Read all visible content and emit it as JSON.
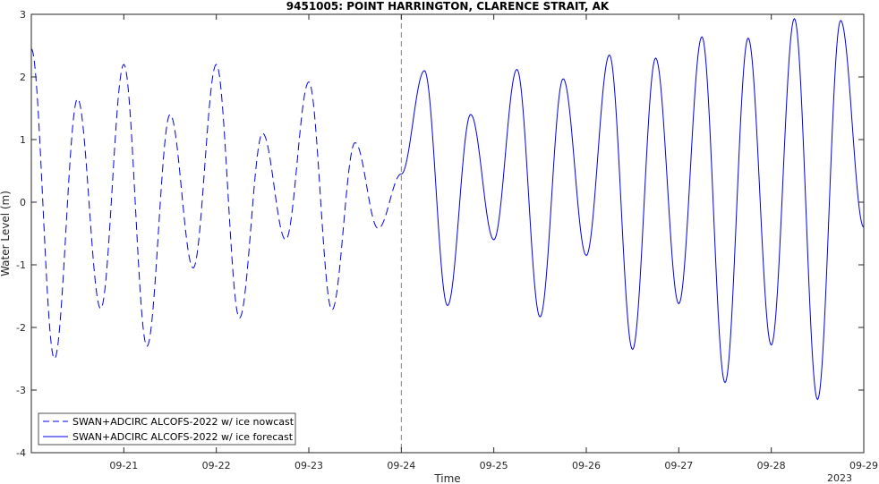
{
  "chart_data": {
    "type": "line",
    "title": "9451005: POINT HARRINGTON, CLARENCE STRAIT, AK",
    "xlabel": "Time",
    "ylabel": "Water Level (m)",
    "year_label": "2023",
    "xlim": [
      "2023-09-20 00:00",
      "2023-09-29 00:00"
    ],
    "ylim": [
      -4,
      3
    ],
    "x_ticks": [
      "09-21",
      "09-22",
      "09-23",
      "09-24",
      "09-25",
      "09-26",
      "09-27",
      "09-28",
      "09-29"
    ],
    "y_ticks": [
      "-4",
      "-3",
      "-2",
      "-1",
      "0",
      "1",
      "2",
      "3"
    ],
    "divider_x": "2023-09-24 00:00",
    "grid": false,
    "legend_position": "bottom-left",
    "colors": {
      "series": "#0000ee",
      "divider": "#808080",
      "axis": "#262626"
    },
    "series": [
      {
        "name": "SWAN+ADCIRC ALCOFS-2022 w/ ice nowcast",
        "style": "dashed",
        "x": [
          "2023-09-20 00:00",
          "2023-09-20 06:00",
          "2023-09-20 12:00",
          "2023-09-20 18:00",
          "2023-09-21 00:00",
          "2023-09-21 06:00",
          "2023-09-21 12:00",
          "2023-09-21 18:00",
          "2023-09-22 00:00",
          "2023-09-22 06:00",
          "2023-09-22 12:00",
          "2023-09-22 18:00",
          "2023-09-23 00:00",
          "2023-09-23 06:00",
          "2023-09-23 12:00",
          "2023-09-23 18:00",
          "2023-09-24 00:00"
        ],
        "y": [
          2.45,
          -2.5,
          1.65,
          -1.7,
          2.2,
          -2.3,
          1.4,
          -1.05,
          2.2,
          -1.85,
          1.1,
          -0.6,
          1.92,
          -1.72,
          0.95,
          -0.42,
          0.45
        ]
      },
      {
        "name": "SWAN+ADCIRC ALCOFS-2022 w/ ice forecast",
        "style": "solid",
        "x": [
          "2023-09-24 00:00",
          "2023-09-24 06:00",
          "2023-09-24 12:00",
          "2023-09-24 18:00",
          "2023-09-25 00:00",
          "2023-09-25 06:00",
          "2023-09-25 12:00",
          "2023-09-25 18:00",
          "2023-09-26 00:00",
          "2023-09-26 06:00",
          "2023-09-26 12:00",
          "2023-09-26 18:00",
          "2023-09-27 00:00",
          "2023-09-27 06:00",
          "2023-09-27 12:00",
          "2023-09-27 18:00",
          "2023-09-28 00:00",
          "2023-09-28 06:00",
          "2023-09-28 12:00",
          "2023-09-28 18:00",
          "2023-09-29 00:00"
        ],
        "y": [
          0.45,
          2.1,
          -1.65,
          1.4,
          -0.6,
          2.12,
          -1.83,
          1.97,
          -0.85,
          2.35,
          -2.35,
          2.3,
          -1.62,
          2.64,
          -2.88,
          2.62,
          -2.28,
          2.93,
          -3.15,
          2.9,
          -0.4
        ]
      }
    ]
  }
}
